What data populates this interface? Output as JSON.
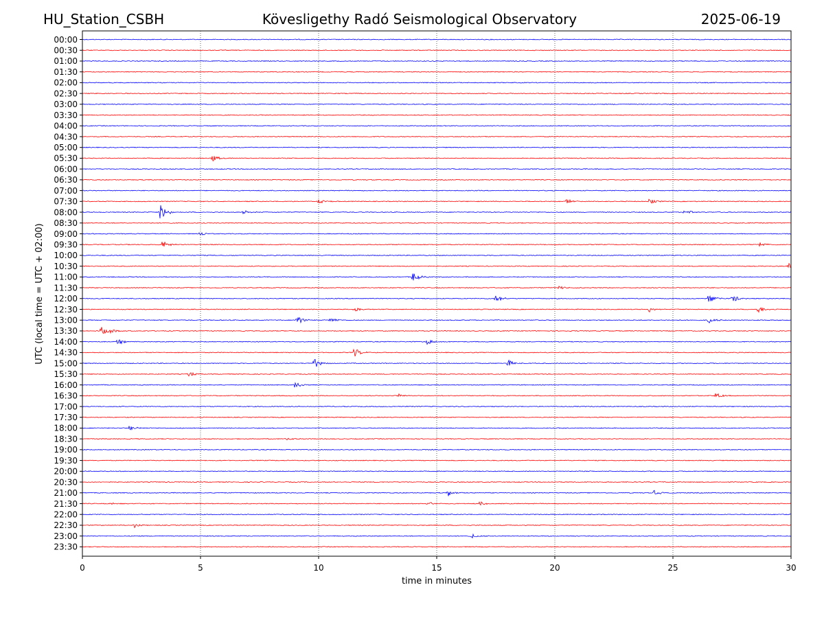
{
  "chart_data": {
    "type": "line",
    "station": "HU_Station_CSBH",
    "title": "Kövesligethy Radó Seismological Observatory",
    "date": "2025-06-19",
    "xlabel": "time in minutes",
    "ylabel": "UTC (local time = UTC + 02:00)",
    "xlim": [
      0,
      30
    ],
    "x_ticks": [
      "0",
      "5",
      "10",
      "15",
      "20",
      "25",
      "30"
    ],
    "x_tick_values": [
      0,
      5,
      10,
      15,
      20,
      25,
      30
    ],
    "grid": "vertical dotted at x ticks",
    "colors": [
      "#0000ff",
      "#ff0000"
    ],
    "color_rule": "alternating traces: blue on the hour, red on the half hour",
    "rows": [
      "00:00",
      "00:30",
      "01:00",
      "01:30",
      "02:00",
      "02:30",
      "03:00",
      "03:30",
      "04:00",
      "04:30",
      "05:00",
      "05:30",
      "06:00",
      "06:30",
      "07:00",
      "07:30",
      "08:00",
      "08:30",
      "09:00",
      "09:30",
      "10:00",
      "10:30",
      "11:00",
      "11:30",
      "12:00",
      "12:30",
      "13:00",
      "13:30",
      "14:00",
      "14:30",
      "15:00",
      "15:30",
      "16:00",
      "16:30",
      "17:00",
      "17:30",
      "18:00",
      "18:30",
      "19:00",
      "19:30",
      "20:00",
      "20:30",
      "21:00",
      "21:30",
      "22:00",
      "22:30",
      "23:00",
      "23:30"
    ],
    "events": [
      {
        "row": "05:30",
        "t": 5.5,
        "amp": 0.35
      },
      {
        "row": "07:30",
        "t": 10.0,
        "amp": 0.25
      },
      {
        "row": "07:30",
        "t": 20.5,
        "amp": 0.25
      },
      {
        "row": "07:30",
        "t": 24.0,
        "amp": 0.3
      },
      {
        "row": "08:00",
        "t": 3.3,
        "amp": 0.9
      },
      {
        "row": "08:00",
        "t": 6.8,
        "amp": 0.25
      },
      {
        "row": "08:00",
        "t": 25.5,
        "amp": 0.3
      },
      {
        "row": "09:00",
        "t": 5.0,
        "amp": 0.25
      },
      {
        "row": "09:30",
        "t": 3.4,
        "amp": 0.45
      },
      {
        "row": "09:30",
        "t": 28.7,
        "amp": 0.35
      },
      {
        "row": "10:30",
        "t": 29.9,
        "amp": 0.35
      },
      {
        "row": "11:00",
        "t": 14.0,
        "amp": 0.55
      },
      {
        "row": "11:30",
        "t": 20.2,
        "amp": 0.25
      },
      {
        "row": "12:00",
        "t": 17.5,
        "amp": 0.45
      },
      {
        "row": "12:00",
        "t": 26.5,
        "amp": 0.5
      },
      {
        "row": "12:00",
        "t": 27.5,
        "amp": 0.45
      },
      {
        "row": "12:30",
        "t": 11.5,
        "amp": 0.3
      },
      {
        "row": "12:30",
        "t": 24.0,
        "amp": 0.3
      },
      {
        "row": "12:30",
        "t": 28.6,
        "amp": 0.4
      },
      {
        "row": "13:00",
        "t": 9.1,
        "amp": 0.5
      },
      {
        "row": "13:00",
        "t": 10.5,
        "amp": 0.3
      },
      {
        "row": "13:00",
        "t": 26.5,
        "amp": 0.4
      },
      {
        "row": "13:30",
        "t": 0.8,
        "amp": 0.45
      },
      {
        "row": "13:30",
        "t": 1.2,
        "amp": 0.3
      },
      {
        "row": "14:00",
        "t": 1.5,
        "amp": 0.3
      },
      {
        "row": "14:00",
        "t": 14.6,
        "amp": 0.3
      },
      {
        "row": "14:30",
        "t": 11.5,
        "amp": 0.5
      },
      {
        "row": "15:00",
        "t": 9.8,
        "amp": 0.55
      },
      {
        "row": "15:00",
        "t": 18.0,
        "amp": 0.45
      },
      {
        "row": "15:30",
        "t": 4.5,
        "amp": 0.3
      },
      {
        "row": "16:00",
        "t": 9.0,
        "amp": 0.35
      },
      {
        "row": "16:30",
        "t": 13.4,
        "amp": 0.25
      },
      {
        "row": "16:30",
        "t": 26.8,
        "amp": 0.35
      },
      {
        "row": "18:00",
        "t": 2.0,
        "amp": 0.25
      },
      {
        "row": "18:30",
        "t": 8.6,
        "amp": 0.3
      },
      {
        "row": "21:00",
        "t": 15.5,
        "amp": 0.35
      },
      {
        "row": "21:00",
        "t": 24.2,
        "amp": 0.25
      },
      {
        "row": "21:30",
        "t": 1.2,
        "amp": 0.25
      },
      {
        "row": "21:30",
        "t": 14.6,
        "amp": 0.25
      },
      {
        "row": "21:30",
        "t": 16.8,
        "amp": 0.25
      },
      {
        "row": "22:30",
        "t": 2.2,
        "amp": 0.25
      },
      {
        "row": "23:00",
        "t": 16.5,
        "amp": 0.25
      }
    ]
  }
}
